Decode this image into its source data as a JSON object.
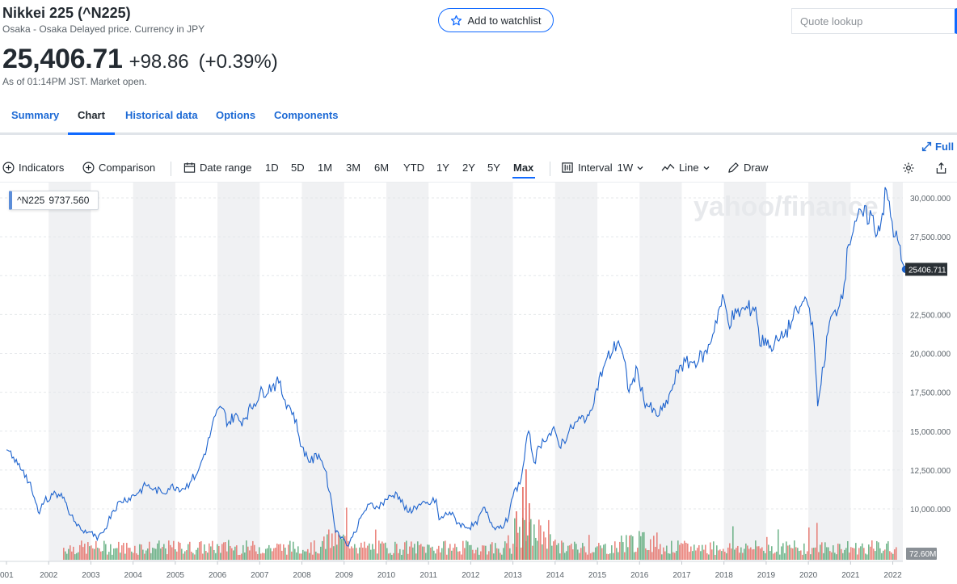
{
  "header": {
    "title": "Nikkei 225 (^N225)",
    "subtitle": "Osaka - Osaka Delayed price. Currency in JPY",
    "price": "25,406.71",
    "change": "+98.86",
    "change_pct": "(+0.39%)",
    "as_of": "As of 01:14PM JST. Market open.",
    "watchlist_label": "Add to watchlist",
    "quote_placeholder": "Quote lookup"
  },
  "tabs": [
    {
      "label": "Summary",
      "active": false
    },
    {
      "label": "Chart",
      "active": true
    },
    {
      "label": "Historical data",
      "active": false
    },
    {
      "label": "Options",
      "active": false
    },
    {
      "label": "Components",
      "active": false
    }
  ],
  "fullscreen_label": "Full s",
  "toolbar": {
    "indicators": "Indicators",
    "comparison": "Comparison",
    "date_range": "Date range",
    "ranges": [
      "1D",
      "5D",
      "1M",
      "3M",
      "6M",
      "YTD",
      "1Y",
      "2Y",
      "5Y",
      "Max"
    ],
    "active_range": "Max",
    "interval": "Interval",
    "interval_value": "1W",
    "line": "Line",
    "draw": "Draw"
  },
  "series_label": {
    "symbol": "^N225",
    "value": "9737.560"
  },
  "colors": {
    "line": "#1d63ce",
    "vol_up": "#3c9a5f",
    "vol_down": "#e2564b",
    "accent": "#0f69ff",
    "band": "#f0f1f3"
  },
  "watermark": "yahoo/finance",
  "chart_data": {
    "type": "line",
    "title": "",
    "xlabel": "",
    "ylabel": "",
    "x_tick_labels": [
      "001",
      "2002",
      "2003",
      "2004",
      "2005",
      "2006",
      "2007",
      "2008",
      "2009",
      "2010",
      "2011",
      "2012",
      "2013",
      "2014",
      "2015",
      "2016",
      "2017",
      "2018",
      "2019",
      "2020",
      "2021",
      "2022"
    ],
    "y_tick_labels": [
      "30,000.000",
      "27,500.000",
      "22,500.000",
      "20,000.000",
      "17,500.000",
      "15,000.000",
      "12,500.000",
      "10,000.000"
    ],
    "ylim": [
      7200,
      30800
    ],
    "xlim": [
      2001.0,
      2022.35
    ],
    "last_value_label": "25406.711",
    "volume_label": "72.60M",
    "series": [
      {
        "type": "line",
        "x": [
          2001.0,
          2001.2,
          2001.4,
          2001.6,
          2001.75,
          2001.9,
          2002.1,
          2002.3,
          2002.45,
          2002.6,
          2002.8,
          2003.0,
          2003.15,
          2003.3,
          2003.5,
          2003.7,
          2003.9,
          2004.1,
          2004.3,
          2004.5,
          2004.7,
          2004.9,
          2005.2,
          2005.35,
          2005.55,
          2005.75,
          2005.95,
          2006.1,
          2006.25,
          2006.4,
          2006.55,
          2006.8,
          2007.0,
          2007.3,
          2007.45,
          2007.6,
          2007.8,
          2008.0,
          2008.2,
          2008.4,
          2008.55,
          2008.7,
          2008.8,
          2008.95,
          2009.1,
          2009.2,
          2009.45,
          2009.6,
          2009.8,
          2010.0,
          2010.25,
          2010.5,
          2010.75,
          2011.0,
          2011.18,
          2011.25,
          2011.5,
          2011.7,
          2011.9,
          2012.15,
          2012.3,
          2012.55,
          2012.8,
          2012.9,
          2013.0,
          2013.2,
          2013.37,
          2013.5,
          2013.7,
          2014.0,
          2014.1,
          2014.4,
          2014.6,
          2014.8,
          2014.95,
          2015.2,
          2015.5,
          2015.6,
          2015.75,
          2015.95,
          2016.1,
          2016.4,
          2016.6,
          2016.8,
          2016.95,
          2017.3,
          2017.6,
          2017.9,
          2018.0,
          2018.1,
          2018.3,
          2018.5,
          2018.75,
          2018.85,
          2018.98,
          2019.1,
          2019.4,
          2019.6,
          2019.8,
          2019.95,
          2020.1,
          2020.17,
          2020.22,
          2020.3,
          2020.5,
          2020.7,
          2020.85,
          2020.95,
          2021.1,
          2021.3,
          2021.5,
          2021.6,
          2021.75,
          2021.85,
          2021.95,
          2022.05,
          2022.15,
          2022.2
        ],
        "y": [
          13800,
          13000,
          12500,
          11200,
          9800,
          10500,
          10900,
          11000,
          10000,
          9200,
          8600,
          8500,
          8000,
          8500,
          9800,
          10500,
          10700,
          11000,
          11500,
          11300,
          11000,
          11500,
          11300,
          11700,
          12500,
          14000,
          16000,
          16500,
          15500,
          16000,
          15600,
          16500,
          17400,
          17900,
          18100,
          17000,
          16200,
          14000,
          13000,
          13500,
          12500,
          10500,
          8500,
          8200,
          7600,
          8200,
          9700,
          10300,
          10100,
          10600,
          11000,
          9800,
          10200,
          10300,
          10600,
          9300,
          9800,
          9100,
          8800,
          9000,
          10100,
          8800,
          9000,
          9500,
          10800,
          12000,
          15000,
          13000,
          14500,
          15000,
          14000,
          15200,
          15800,
          16000,
          17500,
          19500,
          20800,
          20000,
          17500,
          19000,
          17000,
          16000,
          16500,
          18000,
          19200,
          19500,
          20000,
          23000,
          23500,
          22000,
          22600,
          22800,
          23000,
          20500,
          21000,
          20500,
          21000,
          22000,
          23000,
          23500,
          22000,
          19000,
          16600,
          18000,
          22000,
          22800,
          24500,
          27000,
          28500,
          28800,
          28900,
          27500,
          29000,
          30500,
          28800,
          27500,
          27000,
          26000
        ]
      }
    ],
    "last_point": {
      "x": 2022.3,
      "y": 25406.71
    },
    "volume_axis_max_label": "72.60M"
  }
}
